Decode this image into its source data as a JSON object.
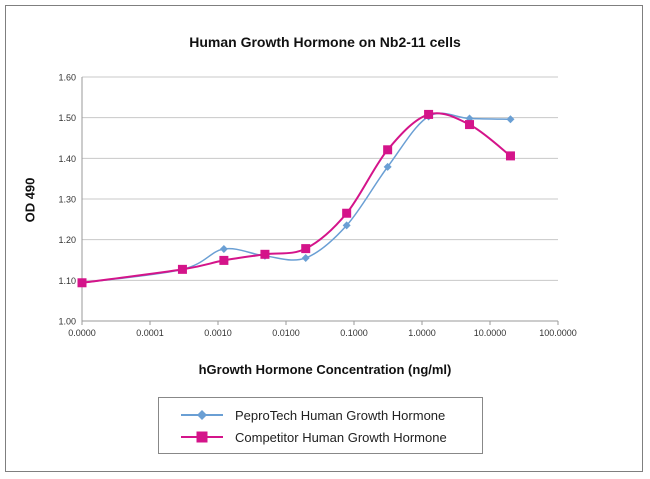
{
  "chart_data": {
    "type": "line",
    "title": "Human Growth Hormone on Nb2-11 cells",
    "xlabel": "hGrowth Hormone Concentration (ng/ml)",
    "ylabel": "OD 490",
    "x_scale": "log",
    "xlim": [
      1e-05,
      100
    ],
    "ylim": [
      1.0,
      1.6
    ],
    "x_tick_labels": [
      "0.0000",
      "0.0001",
      "0.0010",
      "0.0100",
      "0.1000",
      "1.0000",
      "10.0000",
      "100.0000"
    ],
    "y_tick_labels": [
      "1.00",
      "1.10",
      "1.20",
      "1.30",
      "1.40",
      "1.50",
      "1.60"
    ],
    "grid": "horizontal",
    "legend_position": "bottom",
    "x": [
      1e-05,
      0.0003,
      0.00122,
      0.0049,
      0.0195,
      0.078,
      0.3125,
      1.25,
      5,
      20
    ],
    "series": [
      {
        "name": "PeproTech Human Growth Hormone",
        "color": "#6a9fd4",
        "marker": "diamond",
        "values": [
          1.094,
          1.127,
          1.177,
          1.16,
          1.155,
          1.235,
          1.379,
          1.503,
          1.498,
          1.496
        ]
      },
      {
        "name": "Competitor Human Growth Hormone",
        "color": "#d4148a",
        "marker": "square",
        "values": [
          1.094,
          1.127,
          1.149,
          1.164,
          1.178,
          1.265,
          1.421,
          1.508,
          1.483,
          1.406
        ]
      }
    ]
  }
}
